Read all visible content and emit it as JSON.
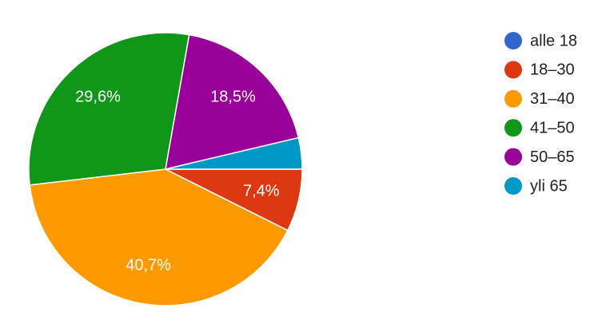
{
  "chart_data": {
    "type": "pie",
    "categories": [
      "alle 18",
      "18–30",
      "31–40",
      "41–50",
      "50–65",
      "yli 65"
    ],
    "values": [
      0,
      7.4,
      40.7,
      29.6,
      18.5,
      3.7
    ],
    "value_labels": [
      null,
      "7,4%",
      "40,7%",
      "29,6%",
      "18,5%",
      null
    ],
    "colors": [
      "#3366cc",
      "#dc3912",
      "#ff9900",
      "#109618",
      "#990099",
      "#0099c6"
    ],
    "legend": "right"
  }
}
